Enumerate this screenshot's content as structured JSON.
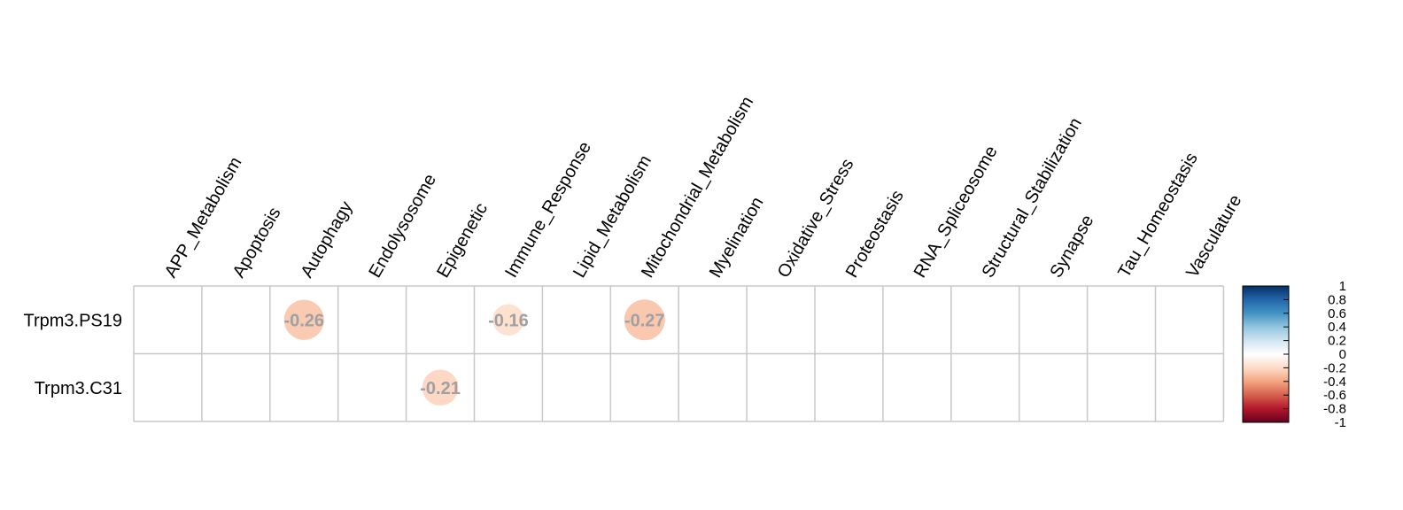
{
  "chart_data": {
    "type": "heatmap",
    "title": "",
    "rows": [
      "Trpm3.PS19",
      "Trpm3.C31"
    ],
    "columns": [
      "APP_Metabolism",
      "Apoptosis",
      "Autophagy",
      "Endolysosome",
      "Epigenetic",
      "Immune_Response",
      "Lipid_Metabolism",
      "Mitochondrial_Metabolism",
      "Myelination",
      "Oxidative_Stress",
      "Proteostasis",
      "RNA_Spliceosome",
      "Structural_Stabilization",
      "Synapse",
      "Tau_Homeostasis",
      "Vasculature"
    ],
    "cells": [
      {
        "row": 0,
        "col": 2,
        "value": -0.26,
        "label": "-0.26"
      },
      {
        "row": 0,
        "col": 5,
        "value": -0.16,
        "label": "-0.16"
      },
      {
        "row": 0,
        "col": 7,
        "value": -0.27,
        "label": "-0.27"
      },
      {
        "row": 1,
        "col": 4,
        "value": -0.21,
        "label": "-0.21"
      }
    ],
    "colorbar": {
      "range": [
        -1,
        1
      ],
      "ticks": [
        "1",
        "0.8",
        "0.6",
        "0.4",
        "0.2",
        "0",
        "-0.2",
        "-0.4",
        "-0.6",
        "-0.8",
        "-1"
      ],
      "stops": [
        "#67001f",
        "#b2182b",
        "#d6604d",
        "#f4a582",
        "#fddbc7",
        "#ffffff",
        "#d1e5f0",
        "#92c5de",
        "#4393c3",
        "#2166ac",
        "#053061"
      ]
    },
    "grid_color": "#c8c8c8",
    "label_color": "#a0a0a0"
  }
}
